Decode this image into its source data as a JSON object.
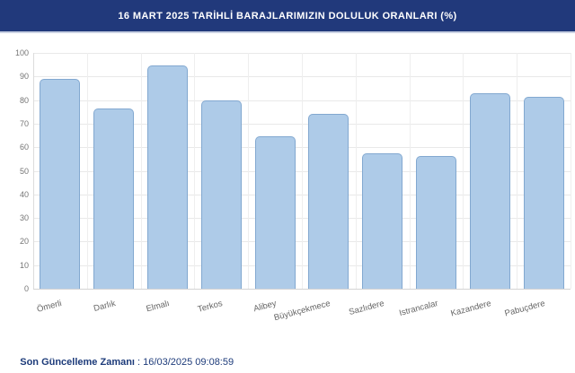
{
  "header": {
    "title": "16 MART 2025 TARİHLİ BARAJLARIMIZIN DOLULUK ORANLARI (%)",
    "bg_color": "#21397B",
    "text_color": "#FFFFFF"
  },
  "footer": {
    "label": "Son Güncelleme Zamanı",
    "separator": " : ",
    "value": "16/03/2025 09:08:59",
    "text_color": "#1D3B7A"
  },
  "chart_data": {
    "type": "bar",
    "title": "16 MART 2025 TARİHLİ BARAJLARIMIZIN DOLULUK ORANLARI (%)",
    "categories": [
      "Ömerli",
      "Darlık",
      "Elmalı",
      "Terkos",
      "Alibey",
      "Büyükçekmece",
      "Sazlıdere",
      "Istrancalar",
      "Kazandere",
      "Pabuçdere"
    ],
    "values": [
      88.8,
      76.4,
      94.8,
      79.8,
      64.8,
      74.3,
      57.6,
      56.1,
      82.9,
      81.3
    ],
    "xlabel": "",
    "ylabel": "",
    "ylim": [
      0,
      100
    ],
    "ytick_step": 10,
    "yticks": [
      0,
      10,
      20,
      30,
      40,
      50,
      60,
      70,
      80,
      90,
      100
    ],
    "grid": true,
    "legend": "none",
    "bar_fill": "#AECBE8",
    "bar_border": "#82A8D0"
  }
}
